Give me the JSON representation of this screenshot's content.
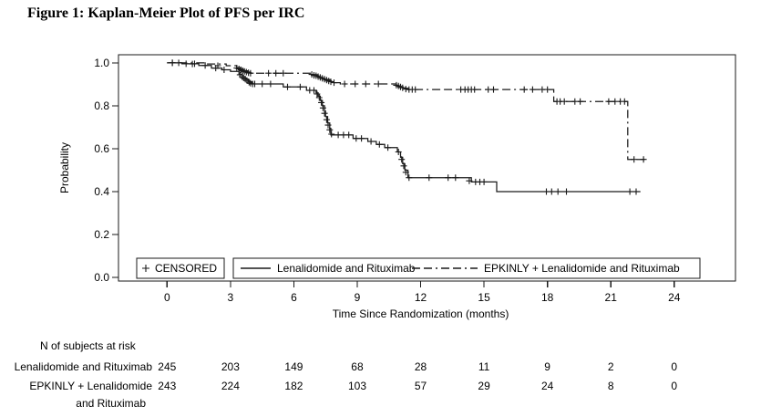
{
  "colors": {
    "line": "#1a1a1a",
    "text": "#000000",
    "background": "#ffffff"
  },
  "chart_data": {
    "type": "line",
    "subtype": "kaplan-meier-step",
    "title": "Figure 1: Kaplan-Meier Plot of PFS per IRC",
    "xlabel": "Time Since Randomization (months)",
    "ylabel": "Probability",
    "xticks": [
      0,
      3,
      6,
      9,
      12,
      15,
      18,
      21,
      24
    ],
    "xtick_labels": [
      "0",
      "3",
      "6",
      "9",
      "12",
      "15",
      "18",
      "21",
      "24"
    ],
    "yticks": [
      0.0,
      0.2,
      0.4,
      0.6,
      0.8,
      1.0
    ],
    "ytick_labels": [
      "0.0",
      "0.2",
      "0.4",
      "0.6",
      "0.8",
      "1.0"
    ],
    "xlim": [
      -2.3,
      26.9
    ],
    "ylim": [
      -0.017,
      1.038
    ],
    "grid": false,
    "legend": {
      "position": "bottom-inside",
      "censored_label": "+ CENSORED",
      "censored_text": "CENSORED"
    },
    "series": [
      {
        "name": "Lenalidomide and Rituximab",
        "style": "solid",
        "steps": [
          [
            0,
            1.0
          ],
          [
            0.7,
            0.996
          ],
          [
            1.5,
            0.988
          ],
          [
            2.1,
            0.976
          ],
          [
            2.6,
            0.968
          ],
          [
            3.0,
            0.96
          ],
          [
            3.4,
            0.948
          ],
          [
            3.55,
            0.936
          ],
          [
            3.7,
            0.924
          ],
          [
            3.85,
            0.912
          ],
          [
            4.0,
            0.902
          ],
          [
            5.5,
            0.888
          ],
          [
            6.6,
            0.872
          ],
          [
            7.05,
            0.86
          ],
          [
            7.15,
            0.845
          ],
          [
            7.25,
            0.825
          ],
          [
            7.35,
            0.8
          ],
          [
            7.45,
            0.775
          ],
          [
            7.5,
            0.75
          ],
          [
            7.6,
            0.72
          ],
          [
            7.7,
            0.695
          ],
          [
            7.75,
            0.664
          ],
          [
            8.8,
            0.648
          ],
          [
            9.5,
            0.634
          ],
          [
            9.9,
            0.62
          ],
          [
            10.3,
            0.605
          ],
          [
            10.9,
            0.585
          ],
          [
            11.05,
            0.56
          ],
          [
            11.15,
            0.53
          ],
          [
            11.25,
            0.5
          ],
          [
            11.4,
            0.465
          ],
          [
            14.4,
            0.445
          ],
          [
            15.6,
            0.4
          ],
          [
            22.4,
            0.4
          ]
        ],
        "censors": [
          [
            0.25,
            1.0
          ],
          [
            0.55,
            1.0
          ],
          [
            0.9,
            0.996
          ],
          [
            1.3,
            0.996
          ],
          [
            1.8,
            0.988
          ],
          [
            2.3,
            0.976
          ],
          [
            2.7,
            0.968
          ],
          [
            3.45,
            0.945
          ],
          [
            3.55,
            0.936
          ],
          [
            3.62,
            0.93
          ],
          [
            3.7,
            0.924
          ],
          [
            3.78,
            0.918
          ],
          [
            3.88,
            0.91
          ],
          [
            3.95,
            0.905
          ],
          [
            4.05,
            0.902
          ],
          [
            4.15,
            0.902
          ],
          [
            4.5,
            0.902
          ],
          [
            4.9,
            0.902
          ],
          [
            5.7,
            0.888
          ],
          [
            6.3,
            0.888
          ],
          [
            6.75,
            0.872
          ],
          [
            6.95,
            0.872
          ],
          [
            7.1,
            0.855
          ],
          [
            7.2,
            0.838
          ],
          [
            7.3,
            0.815
          ],
          [
            7.38,
            0.79
          ],
          [
            7.45,
            0.765
          ],
          [
            7.55,
            0.735
          ],
          [
            7.62,
            0.71
          ],
          [
            7.7,
            0.688
          ],
          [
            7.78,
            0.668
          ],
          [
            8.1,
            0.664
          ],
          [
            8.35,
            0.664
          ],
          [
            8.6,
            0.664
          ],
          [
            8.95,
            0.648
          ],
          [
            9.2,
            0.648
          ],
          [
            9.65,
            0.634
          ],
          [
            10.05,
            0.62
          ],
          [
            10.45,
            0.605
          ],
          [
            10.95,
            0.585
          ],
          [
            11.1,
            0.55
          ],
          [
            11.2,
            0.52
          ],
          [
            11.3,
            0.49
          ],
          [
            11.45,
            0.465
          ],
          [
            12.4,
            0.465
          ],
          [
            13.3,
            0.465
          ],
          [
            13.65,
            0.465
          ],
          [
            14.3,
            0.45
          ],
          [
            14.6,
            0.445
          ],
          [
            14.8,
            0.445
          ],
          [
            15.0,
            0.445
          ],
          [
            17.95,
            0.4
          ],
          [
            18.2,
            0.4
          ],
          [
            18.5,
            0.4
          ],
          [
            18.9,
            0.4
          ],
          [
            21.9,
            0.4
          ],
          [
            22.2,
            0.4
          ]
        ]
      },
      {
        "name": "EPKINLY + Lenalidomide and Rituximab",
        "style": "dashdot",
        "steps": [
          [
            0,
            1.0
          ],
          [
            1.8,
            0.995
          ],
          [
            2.8,
            0.987
          ],
          [
            3.3,
            0.978
          ],
          [
            3.45,
            0.97
          ],
          [
            3.6,
            0.963
          ],
          [
            3.8,
            0.957
          ],
          [
            3.95,
            0.952
          ],
          [
            6.9,
            0.945
          ],
          [
            7.1,
            0.938
          ],
          [
            7.3,
            0.93
          ],
          [
            7.5,
            0.922
          ],
          [
            7.7,
            0.915
          ],
          [
            7.9,
            0.908
          ],
          [
            8.2,
            0.902
          ],
          [
            10.85,
            0.896
          ],
          [
            11.0,
            0.889
          ],
          [
            11.2,
            0.882
          ],
          [
            11.4,
            0.876
          ],
          [
            18.3,
            0.82
          ],
          [
            21.8,
            0.55
          ],
          [
            22.7,
            0.55
          ]
        ],
        "censors": [
          [
            0.25,
            1.0
          ],
          [
            1.2,
            0.995
          ],
          [
            2.4,
            0.987
          ],
          [
            3.3,
            0.976
          ],
          [
            3.4,
            0.972
          ],
          [
            3.5,
            0.968
          ],
          [
            3.58,
            0.964
          ],
          [
            3.66,
            0.96
          ],
          [
            3.75,
            0.957
          ],
          [
            3.85,
            0.954
          ],
          [
            3.95,
            0.952
          ],
          [
            4.8,
            0.952
          ],
          [
            5.15,
            0.952
          ],
          [
            5.5,
            0.952
          ],
          [
            6.85,
            0.946
          ],
          [
            6.95,
            0.942
          ],
          [
            7.05,
            0.94
          ],
          [
            7.15,
            0.936
          ],
          [
            7.25,
            0.932
          ],
          [
            7.35,
            0.928
          ],
          [
            7.45,
            0.924
          ],
          [
            7.55,
            0.92
          ],
          [
            7.65,
            0.916
          ],
          [
            7.75,
            0.912
          ],
          [
            7.9,
            0.908
          ],
          [
            8.4,
            0.902
          ],
          [
            8.9,
            0.902
          ],
          [
            9.4,
            0.902
          ],
          [
            10.0,
            0.902
          ],
          [
            10.85,
            0.896
          ],
          [
            10.95,
            0.892
          ],
          [
            11.05,
            0.888
          ],
          [
            11.15,
            0.884
          ],
          [
            11.3,
            0.878
          ],
          [
            11.45,
            0.876
          ],
          [
            11.6,
            0.876
          ],
          [
            11.75,
            0.876
          ],
          [
            13.9,
            0.876
          ],
          [
            14.1,
            0.876
          ],
          [
            14.25,
            0.876
          ],
          [
            14.4,
            0.876
          ],
          [
            14.55,
            0.876
          ],
          [
            15.2,
            0.876
          ],
          [
            15.45,
            0.876
          ],
          [
            16.9,
            0.876
          ],
          [
            17.3,
            0.876
          ],
          [
            17.75,
            0.876
          ],
          [
            18.0,
            0.876
          ],
          [
            18.45,
            0.82
          ],
          [
            18.6,
            0.82
          ],
          [
            18.8,
            0.82
          ],
          [
            19.3,
            0.82
          ],
          [
            19.55,
            0.82
          ],
          [
            20.9,
            0.82
          ],
          [
            21.2,
            0.82
          ],
          [
            21.45,
            0.82
          ],
          [
            21.65,
            0.82
          ],
          [
            22.1,
            0.55
          ],
          [
            22.55,
            0.55
          ]
        ]
      }
    ],
    "risk_table": {
      "header": "N of subjects at risk",
      "rows": [
        {
          "label_lines": [
            "Lenalidomide and Rituximab"
          ],
          "counts": [
            "245",
            "203",
            "149",
            "68",
            "28",
            "11",
            "9",
            "2",
            "0"
          ]
        },
        {
          "label_lines": [
            "EPKINLY + Lenalidomide",
            "and Rituximab"
          ],
          "counts": [
            "243",
            "224",
            "182",
            "103",
            "57",
            "29",
            "24",
            "8",
            "0"
          ]
        }
      ]
    }
  }
}
